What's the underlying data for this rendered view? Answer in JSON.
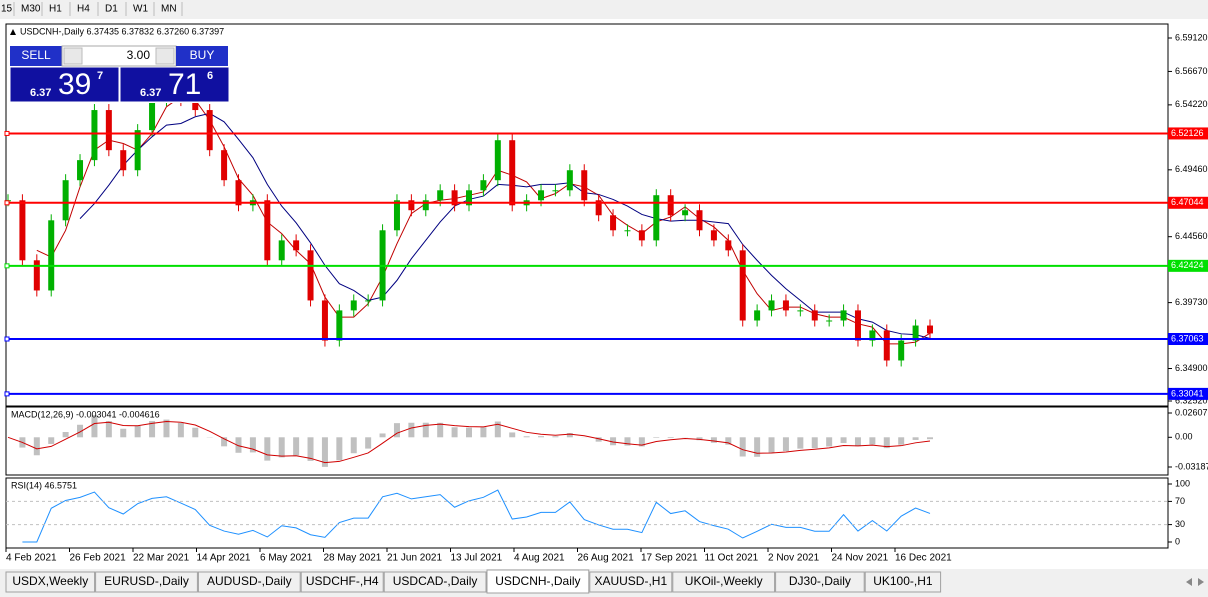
{
  "toolbar": {
    "timeframes": [
      "15",
      "M30",
      "H1",
      "H4",
      "D1",
      "W1",
      "MN"
    ]
  },
  "chart": {
    "header": "USDCNH-,Daily  6.37435 6.37832 6.37260 6.37397",
    "ylim": [
      6.3252,
      6.5912
    ],
    "yticks": [
      {
        "value": 6.5912,
        "label": "6.59120"
      },
      {
        "value": 6.5667,
        "label": "6.56670"
      },
      {
        "value": 6.5422,
        "label": "6.54220"
      },
      {
        "value": 6.4946,
        "label": "6.49460"
      },
      {
        "value": 6.4456,
        "label": "6.44560"
      },
      {
        "value": 6.3973,
        "label": "6.39730"
      },
      {
        "value": 6.349,
        "label": "6.34900"
      },
      {
        "value": 6.3252,
        "label": "6.32520"
      }
    ],
    "levels": [
      {
        "value": 6.52126,
        "label": "6.52126",
        "color": "#ff0000"
      },
      {
        "value": 6.47044,
        "label": "6.47044",
        "color": "#ff0000"
      },
      {
        "value": 6.42424,
        "label": "6.42424",
        "color": "#00e000"
      },
      {
        "value": 6.37063,
        "label": "6.37063",
        "color": "#0000ff"
      },
      {
        "value": 6.33041,
        "label": "6.33041",
        "color": "#0000ff"
      }
    ],
    "closes": [
      6.4723,
      6.4283,
      6.4062,
      6.4576,
      6.487,
      6.5017,
      6.5384,
      6.509,
      6.4943,
      6.5237,
      6.5457,
      6.553,
      6.5457,
      6.5384,
      6.509,
      6.487,
      6.4686,
      6.4723,
      6.4283,
      6.4429,
      6.4356,
      6.3989,
      6.3695,
      6.3916,
      6.3989,
      6.3989,
      6.4503,
      6.4723,
      6.465,
      6.4723,
      6.4796,
      6.4686,
      6.4796,
      6.487,
      6.5163,
      6.4686,
      6.4723,
      6.4796,
      6.4796,
      6.4943,
      6.4723,
      6.4613,
      6.4503,
      6.4503,
      6.4429,
      6.476,
      6.4613,
      6.465,
      6.4503,
      6.4429,
      6.4356,
      6.3842,
      6.3916,
      6.3989,
      6.3916,
      6.3916,
      6.3842,
      6.3842,
      6.3916,
      6.3695,
      6.3769,
      6.3549,
      6.3695,
      6.3805,
      6.3747
    ],
    "up_color": "#00b000",
    "down_color": "#e00000",
    "dates": [
      "4 Feb 2021",
      "26 Feb 2021",
      "22 Mar 2021",
      "14 Apr 2021",
      "6 May 2021",
      "28 May 2021",
      "21 Jun 2021",
      "13 Jul 2021",
      "4 Aug 2021",
      "26 Aug 2021",
      "17 Sep 2021",
      "11 Oct 2021",
      "2 Nov 2021",
      "24 Nov 2021",
      "16 Dec 2021"
    ]
  },
  "trade": {
    "sell": {
      "label": "SELL",
      "prefix": "6.37",
      "big": "39",
      "sup": "7"
    },
    "lot": "3.00",
    "buy": {
      "label": "BUY",
      "prefix": "6.37",
      "big": "71",
      "sup": "6"
    }
  },
  "macd": {
    "header": "MACD(12,26,9) -0.003041 -0.004616",
    "ylim": [
      -0.03187,
      0.02607
    ],
    "yticks": [
      {
        "value": 0.02607,
        "label": "0.02607"
      },
      {
        "value": 0,
        "label": "0.00"
      },
      {
        "value": -0.03187,
        "label": "-0.03187"
      }
    ]
  },
  "rsi": {
    "header": "RSI(14) 46.5751",
    "ylim": [
      0,
      100
    ],
    "yticks": [
      100,
      70,
      30,
      0
    ]
  },
  "tabs": [
    "USDX,Weekly",
    "EURUSD-,Daily",
    "AUDUSD-,Daily",
    "USDCHF-,H4",
    "USDCAD-,Daily",
    "USDCNH-,Daily",
    "XAUUSD-,H1",
    "UKOil-,Weekly",
    "DJ30-,Daily",
    "UK100-,H1"
  ],
  "active_tab": 5
}
